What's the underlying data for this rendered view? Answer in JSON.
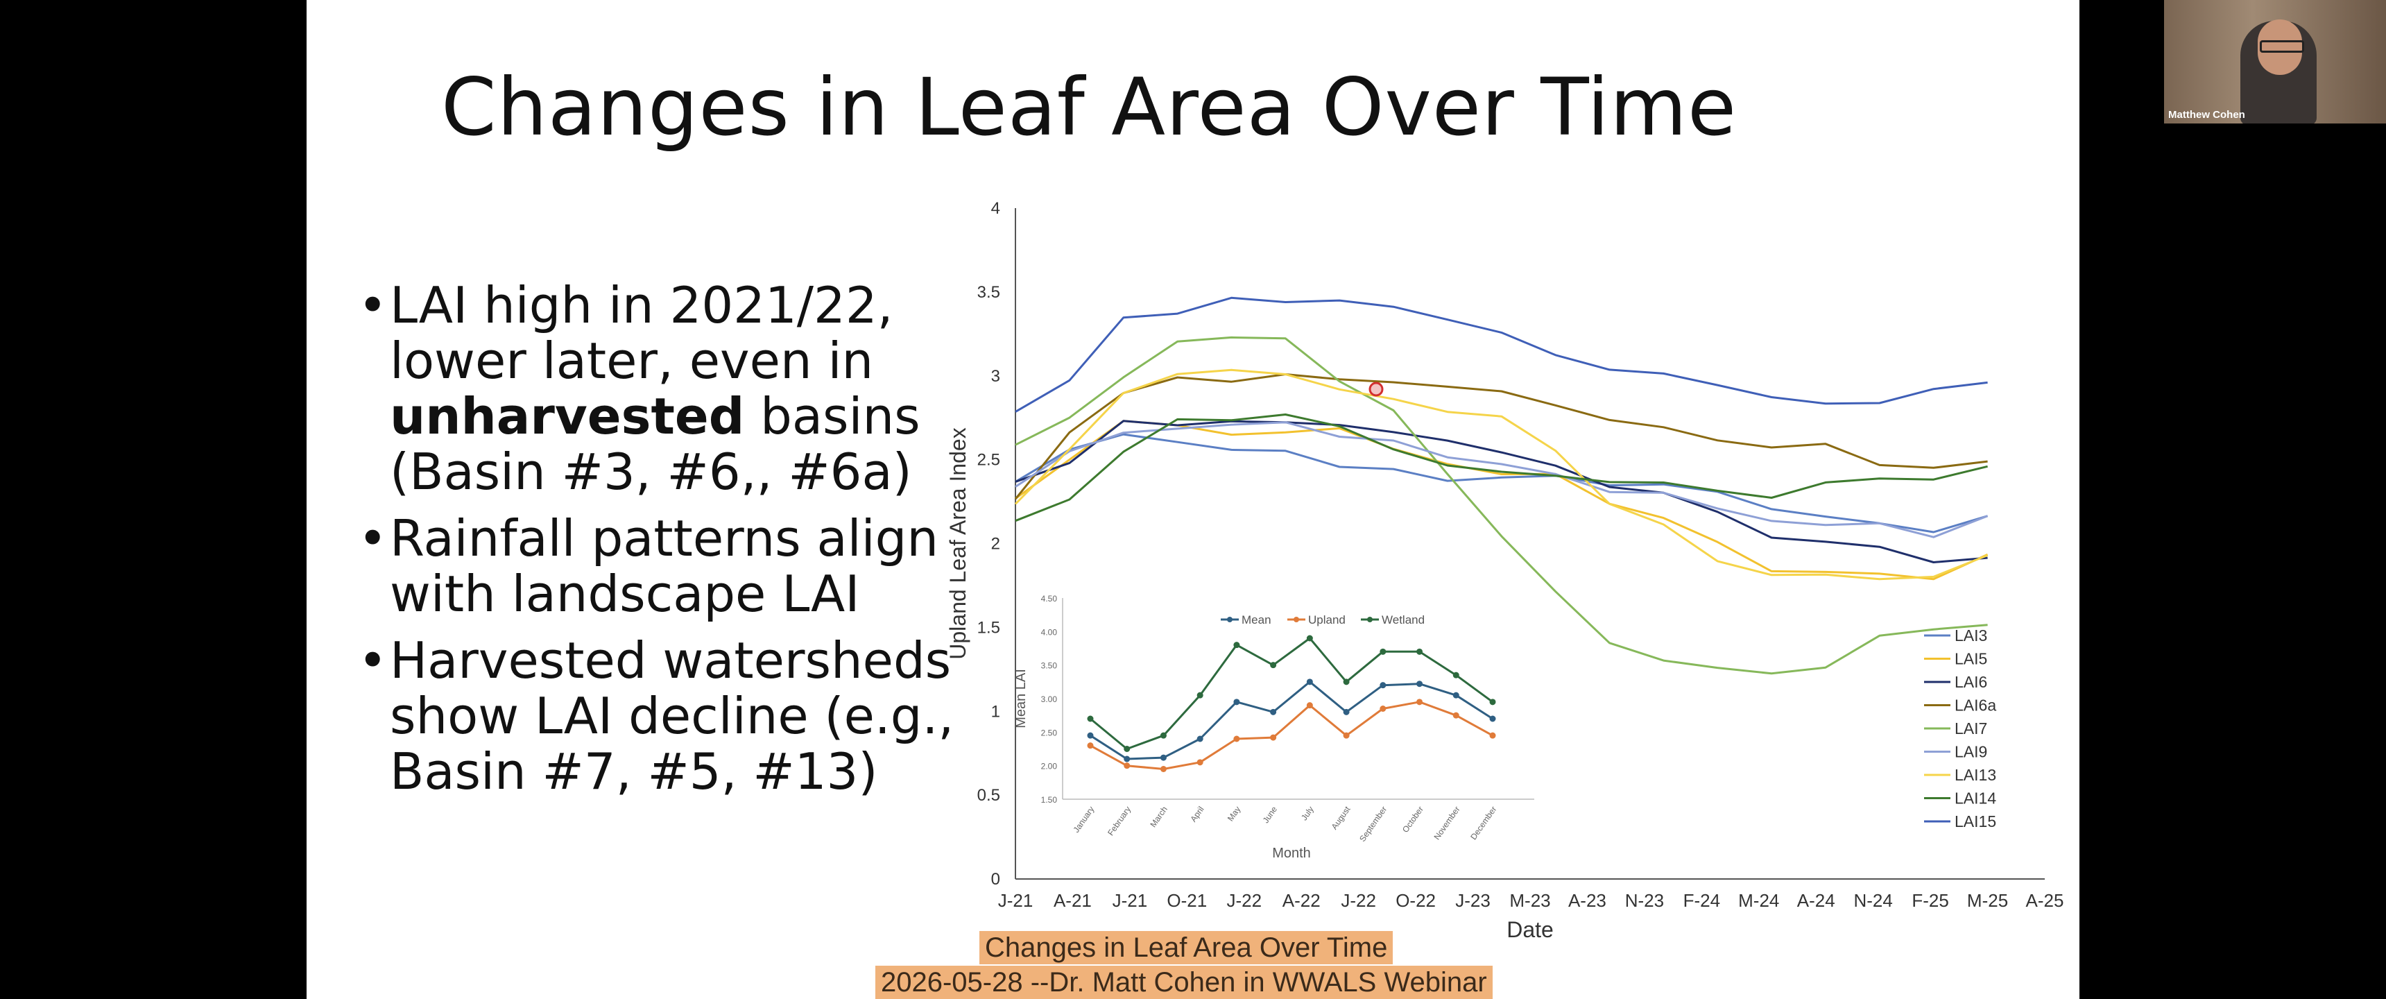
{
  "slide": {
    "title": "Changes in Leaf Area Over Time",
    "bullets": [
      {
        "lines": [
          "LAI high in 2021/22,",
          "lower later, even in"
        ],
        "bold": "unharvested",
        "after": " basins",
        "tail": [
          "(Basin #3, #6,, #6a)"
        ]
      },
      {
        "lines": [
          "Rainfall patterns align",
          "with landscape LAI"
        ]
      },
      {
        "lines": [
          "Harvested watersheds",
          "show LAI decline (e.g.,",
          "Basin #7, #5, #13)"
        ]
      }
    ]
  },
  "chart_data": [
    {
      "type": "line",
      "title": "",
      "xlabel": "Date",
      "ylabel": "Upland Leaf Area Index",
      "ylim": [
        0,
        4
      ],
      "yticks": [
        "0",
        "0.5",
        "1",
        "1.5",
        "2",
        "2.5",
        "3",
        "3.5",
        "4"
      ],
      "xtick_labels": [
        "J-21",
        "A-21",
        "J-21",
        "O-21",
        "J-22",
        "A-22",
        "J-22",
        "O-22",
        "J-23",
        "M-23",
        "A-23",
        "N-23",
        "F-24",
        "M-24",
        "A-24",
        "N-24",
        "F-25",
        "M-25",
        "A-25"
      ],
      "legend_position": "right",
      "series": [
        {
          "name": "LAI3",
          "color": "#5b7fc4",
          "values": [
            2.38,
            2.56,
            2.64,
            2.62,
            2.55,
            2.55,
            2.47,
            2.43,
            2.38,
            2.4,
            2.39,
            2.36,
            2.35,
            2.3,
            2.22,
            2.15,
            2.12,
            2.08,
            2.15
          ]
        },
        {
          "name": "LAI5",
          "color": "#f2c12e",
          "values": [
            2.28,
            2.5,
            2.72,
            2.72,
            2.64,
            2.66,
            2.7,
            2.55,
            2.48,
            2.42,
            2.4,
            2.25,
            2.15,
            2.0,
            1.85,
            1.82,
            1.82,
            1.8,
            1.92
          ]
        },
        {
          "name": "LAI6",
          "color": "#1f2f6b",
          "values": [
            2.38,
            2.48,
            2.72,
            2.72,
            2.72,
            2.72,
            2.72,
            2.65,
            2.62,
            2.55,
            2.45,
            2.35,
            2.3,
            2.18,
            2.05,
            2.0,
            1.98,
            1.9,
            1.9
          ]
        },
        {
          "name": "LAI6a",
          "color": "#8a6a12",
          "values": [
            2.28,
            2.65,
            2.9,
            3.0,
            2.95,
            3.02,
            2.98,
            2.95,
            2.95,
            2.9,
            2.82,
            2.75,
            2.68,
            2.62,
            2.58,
            2.58,
            2.48,
            2.45,
            2.48
          ]
        },
        {
          "name": "LAI7",
          "color": "#86b85a",
          "values": [
            2.6,
            2.75,
            2.98,
            3.22,
            3.22,
            3.22,
            2.98,
            2.78,
            2.42,
            2.05,
            1.7,
            1.42,
            1.3,
            1.25,
            1.24,
            1.25,
            1.45,
            1.5,
            1.5
          ]
        },
        {
          "name": "LAI9",
          "color": "#8ea0d6",
          "values": [
            2.35,
            2.55,
            2.65,
            2.7,
            2.7,
            2.72,
            2.65,
            2.6,
            2.52,
            2.48,
            2.4,
            2.32,
            2.3,
            2.2,
            2.15,
            2.1,
            2.12,
            2.05,
            2.15
          ]
        },
        {
          "name": "LAI13",
          "color": "#f5d44a",
          "values": [
            2.25,
            2.55,
            2.9,
            3.02,
            3.02,
            3.02,
            2.92,
            2.85,
            2.8,
            2.75,
            2.55,
            2.25,
            2.1,
            1.9,
            1.82,
            1.8,
            1.8,
            1.8,
            1.92
          ]
        },
        {
          "name": "LAI14",
          "color": "#3d7a2e",
          "values": [
            2.15,
            2.25,
            2.55,
            2.75,
            2.72,
            2.78,
            2.7,
            2.55,
            2.48,
            2.42,
            2.4,
            2.38,
            2.35,
            2.32,
            2.28,
            2.35,
            2.4,
            2.38,
            2.45
          ]
        },
        {
          "name": "LAI15",
          "color": "#3f5fb7",
          "values": [
            2.8,
            2.96,
            3.35,
            3.38,
            3.45,
            3.45,
            3.45,
            3.4,
            3.35,
            3.25,
            3.12,
            3.05,
            3.0,
            2.95,
            2.88,
            2.82,
            2.85,
            2.92,
            2.95
          ]
        }
      ]
    },
    {
      "type": "line",
      "title": "",
      "xlabel": "Month",
      "ylabel": "Mean LAI",
      "ylim": [
        1.5,
        4.5
      ],
      "yticks": [
        "1.50",
        "2.00",
        "2.50",
        "3.00",
        "3.50",
        "4.00",
        "4.50"
      ],
      "categories": [
        "January",
        "February",
        "March",
        "April",
        "May",
        "June",
        "July",
        "August",
        "September",
        "October",
        "November",
        "December"
      ],
      "legend_position": "top",
      "series": [
        {
          "name": "Mean",
          "color": "#2f5f83",
          "values": [
            2.45,
            2.1,
            2.12,
            2.4,
            2.95,
            2.8,
            3.25,
            2.8,
            3.2,
            3.22,
            3.05,
            2.7
          ]
        },
        {
          "name": "Upland",
          "color": "#e07b39",
          "values": [
            2.3,
            2.0,
            1.95,
            2.05,
            2.4,
            2.42,
            2.9,
            2.45,
            2.85,
            2.95,
            2.75,
            2.45
          ]
        },
        {
          "name": "Wetland",
          "color": "#2d6a3e",
          "values": [
            2.7,
            2.25,
            2.45,
            3.05,
            3.8,
            3.5,
            3.9,
            3.25,
            3.7,
            3.7,
            3.35,
            2.95
          ]
        }
      ]
    }
  ],
  "captions": {
    "line1": "Changes in Leaf Area Over Time",
    "line2": "2026-05-28 --Dr. Matt Cohen in WWALS Webinar"
  },
  "video": {
    "participant_name": "Matthew Cohen"
  }
}
